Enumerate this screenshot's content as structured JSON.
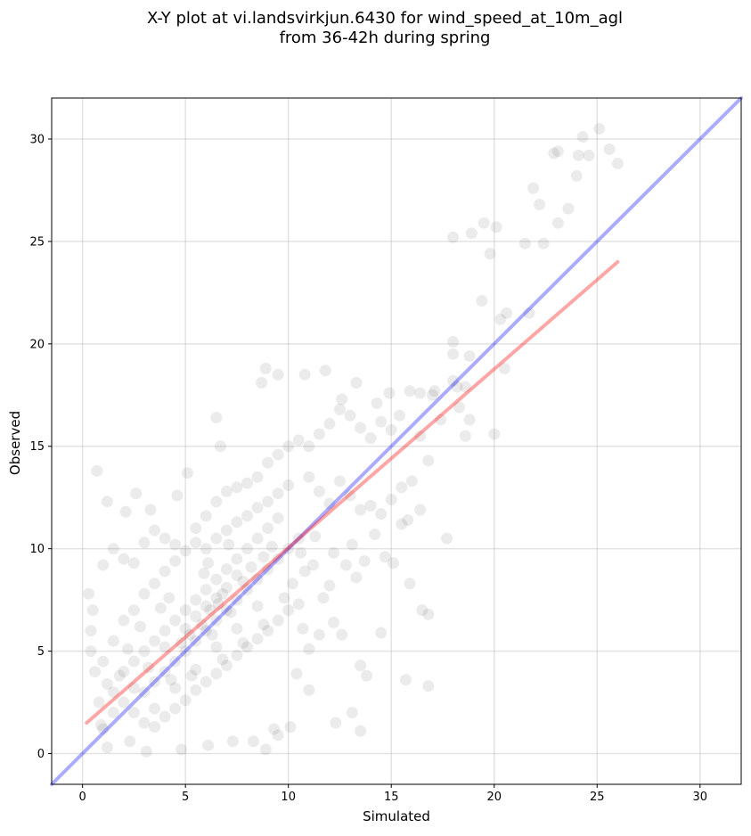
{
  "chart_data": {
    "type": "scatter",
    "title_lines": [
      "X-Y plot at vi.landsvirkjun.6430 for wind_speed_at_10m_agl",
      "from 36-42h during spring"
    ],
    "xlabel": "Simulated",
    "ylabel": "Observed",
    "xlim": [
      -1.5,
      32
    ],
    "ylim": [
      -1.5,
      32
    ],
    "xticks": [
      0,
      5,
      10,
      15,
      20,
      25,
      30
    ],
    "yticks": [
      0,
      5,
      10,
      15,
      20,
      25,
      30
    ],
    "xtick_labels": [
      "0",
      "5",
      "10",
      "15",
      "20",
      "25",
      "30"
    ],
    "ytick_labels": [
      "0",
      "5",
      "10",
      "15",
      "20",
      "25",
      "30"
    ],
    "grid": true,
    "point_color": "#000000",
    "point_opacity": 0.08,
    "points": [
      [
        0.7,
        13.8
      ],
      [
        1.2,
        12.3
      ],
      [
        2.6,
        12.7
      ],
      [
        2.1,
        11.8
      ],
      [
        3.3,
        11.9
      ],
      [
        4.6,
        12.6
      ],
      [
        5.1,
        13.7
      ],
      [
        6.5,
        16.4
      ],
      [
        6.7,
        15.0
      ],
      [
        8.9,
        18.8
      ],
      [
        10.8,
        18.5
      ],
      [
        11.8,
        18.7
      ],
      [
        12.6,
        17.3
      ],
      [
        13.3,
        18.1
      ],
      [
        8.7,
        18.1
      ],
      [
        9.5,
        18.5
      ],
      [
        14.3,
        17.1
      ],
      [
        14.9,
        17.6
      ],
      [
        15.4,
        16.5
      ],
      [
        15.9,
        17.7
      ],
      [
        16.4,
        17.6
      ],
      [
        17.1,
        17.7
      ],
      [
        16.4,
        15.5
      ],
      [
        16.8,
        14.3
      ],
      [
        17.4,
        16.3
      ],
      [
        17.7,
        10.5
      ],
      [
        16.8,
        6.8
      ],
      [
        16.5,
        7.0
      ],
      [
        15.9,
        8.3
      ],
      [
        15.7,
        3.6
      ],
      [
        16.8,
        3.3
      ],
      [
        13.5,
        1.1
      ],
      [
        13.1,
        2.0
      ],
      [
        12.3,
        1.5
      ],
      [
        14.5,
        5.9
      ],
      [
        13.8,
        3.8
      ],
      [
        13.5,
        4.3
      ],
      [
        18.0,
        25.2
      ],
      [
        18.9,
        25.4
      ],
      [
        19.5,
        25.9
      ],
      [
        19.8,
        24.4
      ],
      [
        20.1,
        25.7
      ],
      [
        21.5,
        24.9
      ],
      [
        22.4,
        24.9
      ],
      [
        22.2,
        26.8
      ],
      [
        21.9,
        27.6
      ],
      [
        22.9,
        29.3
      ],
      [
        23.1,
        29.4
      ],
      [
        23.6,
        26.6
      ],
      [
        23.1,
        25.9
      ],
      [
        24.0,
        28.2
      ],
      [
        24.1,
        29.2
      ],
      [
        24.3,
        30.1
      ],
      [
        24.6,
        29.2
      ],
      [
        25.1,
        30.5
      ],
      [
        25.6,
        29.5
      ],
      [
        26.0,
        28.8
      ],
      [
        18.0,
        20.1
      ],
      [
        18.0,
        19.5
      ],
      [
        18.8,
        19.4
      ],
      [
        19.4,
        22.1
      ],
      [
        20.3,
        21.2
      ],
      [
        20.6,
        21.5
      ],
      [
        21.7,
        21.5
      ],
      [
        20.0,
        15.6
      ],
      [
        20.5,
        18.8
      ],
      [
        18.8,
        16.3
      ],
      [
        18.6,
        15.5
      ],
      [
        18.3,
        16.9
      ],
      [
        18.2,
        17.9
      ],
      [
        18.6,
        17.9
      ],
      [
        17.0,
        17.5
      ],
      [
        18.0,
        18.2
      ],
      [
        16.0,
        13.3
      ],
      [
        16.4,
        11.9
      ],
      [
        15.8,
        11.4
      ],
      [
        15.5,
        11.2
      ],
      [
        0.3,
        7.8
      ],
      [
        0.5,
        7.0
      ],
      [
        0.4,
        5.0
      ],
      [
        0.6,
        4.0
      ],
      [
        0.4,
        6.0
      ],
      [
        0.8,
        2.5
      ],
      [
        0.9,
        1.4
      ],
      [
        1.2,
        0.3
      ],
      [
        2.3,
        0.6
      ],
      [
        3.1,
        0.1
      ],
      [
        4.8,
        0.2
      ],
      [
        6.1,
        0.4
      ],
      [
        7.3,
        0.6
      ],
      [
        8.3,
        0.6
      ],
      [
        8.9,
        0.2
      ],
      [
        9.5,
        0.9
      ],
      [
        10.1,
        1.3
      ],
      [
        9.3,
        1.2
      ],
      [
        11.0,
        3.1
      ],
      [
        10.4,
        3.9
      ],
      [
        1.0,
        9.2
      ],
      [
        1.5,
        10.0
      ],
      [
        2.0,
        9.5
      ],
      [
        2.5,
        9.3
      ],
      [
        3.0,
        10.3
      ],
      [
        3.5,
        10.9
      ],
      [
        4.0,
        10.5
      ],
      [
        4.5,
        10.2
      ],
      [
        5.5,
        11.0
      ],
      [
        6.0,
        11.6
      ],
      [
        6.5,
        12.3
      ],
      [
        7.0,
        12.8
      ],
      [
        7.5,
        13.0
      ],
      [
        8.0,
        13.2
      ],
      [
        8.5,
        13.5
      ],
      [
        9.0,
        14.2
      ],
      [
        9.5,
        14.6
      ],
      [
        10.0,
        15.0
      ],
      [
        10.5,
        15.3
      ],
      [
        11.0,
        15.0
      ],
      [
        11.5,
        15.6
      ],
      [
        12.0,
        16.1
      ],
      [
        12.5,
        16.8
      ],
      [
        13.0,
        16.5
      ],
      [
        13.5,
        15.9
      ],
      [
        14.0,
        15.4
      ],
      [
        14.5,
        16.2
      ],
      [
        15.0,
        15.8
      ],
      [
        11.0,
        13.5
      ],
      [
        11.5,
        12.8
      ],
      [
        12.0,
        12.2
      ],
      [
        12.5,
        13.3
      ],
      [
        13.0,
        12.6
      ],
      [
        13.5,
        11.9
      ],
      [
        14.0,
        12.1
      ],
      [
        14.5,
        11.7
      ],
      [
        15.0,
        12.4
      ],
      [
        15.5,
        13.0
      ],
      [
        12.8,
        9.2
      ],
      [
        13.3,
        8.6
      ],
      [
        12.0,
        8.2
      ],
      [
        11.7,
        7.6
      ],
      [
        12.2,
        6.4
      ],
      [
        11.5,
        5.8
      ],
      [
        12.6,
        5.8
      ],
      [
        11.0,
        5.1
      ],
      [
        10.7,
        6.1
      ],
      [
        12.2,
        9.8
      ],
      [
        13.7,
        9.4
      ],
      [
        14.2,
        10.7
      ],
      [
        14.7,
        9.6
      ],
      [
        15.1,
        9.3
      ],
      [
        13.1,
        10.2
      ],
      [
        11.3,
        10.6
      ],
      [
        10.6,
        9.8
      ],
      [
        1.5,
        3.0
      ],
      [
        2.0,
        2.5
      ],
      [
        2.5,
        2.0
      ],
      [
        3.0,
        1.5
      ],
      [
        3.5,
        1.3
      ],
      [
        4.0,
        1.8
      ],
      [
        4.5,
        2.2
      ],
      [
        5.0,
        2.6
      ],
      [
        5.5,
        3.1
      ],
      [
        6.0,
        3.5
      ],
      [
        6.5,
        3.9
      ],
      [
        7.0,
        4.3
      ],
      [
        7.5,
        4.8
      ],
      [
        8.0,
        5.2
      ],
      [
        8.5,
        5.6
      ],
      [
        9.0,
        6.0
      ],
      [
        9.5,
        6.5
      ],
      [
        10.0,
        7.0
      ],
      [
        10.5,
        7.3
      ],
      [
        1.0,
        4.5
      ],
      [
        1.5,
        5.5
      ],
      [
        2.0,
        6.5
      ],
      [
        2.5,
        7.0
      ],
      [
        3.0,
        7.8
      ],
      [
        3.5,
        8.3
      ],
      [
        4.0,
        8.9
      ],
      [
        4.5,
        9.4
      ],
      [
        5.0,
        9.9
      ],
      [
        5.5,
        10.3
      ],
      [
        6.0,
        10.0
      ],
      [
        6.5,
        10.5
      ],
      [
        7.0,
        10.9
      ],
      [
        7.5,
        11.3
      ],
      [
        8.0,
        11.6
      ],
      [
        8.5,
        12.0
      ],
      [
        9.0,
        12.3
      ],
      [
        9.5,
        12.7
      ],
      [
        10.0,
        13.1
      ],
      [
        2.0,
        4.0
      ],
      [
        2.5,
        4.5
      ],
      [
        3.0,
        5.0
      ],
      [
        3.5,
        5.5
      ],
      [
        4.0,
        6.0
      ],
      [
        4.5,
        6.5
      ],
      [
        5.0,
        7.0
      ],
      [
        5.5,
        7.5
      ],
      [
        6.0,
        8.0
      ],
      [
        6.5,
        8.5
      ],
      [
        7.0,
        9.0
      ],
      [
        7.5,
        9.5
      ],
      [
        8.0,
        10.0
      ],
      [
        8.5,
        10.5
      ],
      [
        9.0,
        11.0
      ],
      [
        9.5,
        11.5
      ],
      [
        3.0,
        3.0
      ],
      [
        3.5,
        3.5
      ],
      [
        4.0,
        4.0
      ],
      [
        4.5,
        4.5
      ],
      [
        5.0,
        5.0
      ],
      [
        5.5,
        5.5
      ],
      [
        6.0,
        6.0
      ],
      [
        6.5,
        6.5
      ],
      [
        7.0,
        7.0
      ],
      [
        7.5,
        7.5
      ],
      [
        8.0,
        8.0
      ],
      [
        8.5,
        8.5
      ],
      [
        9.0,
        9.0
      ],
      [
        9.5,
        9.5
      ],
      [
        10.0,
        10.0
      ],
      [
        10.5,
        10.5
      ],
      [
        4.0,
        5.2
      ],
      [
        5.0,
        6.1
      ],
      [
        6.0,
        7.2
      ],
      [
        7.0,
        8.1
      ],
      [
        5.5,
        6.7
      ],
      [
        6.5,
        7.6
      ],
      [
        7.5,
        8.7
      ],
      [
        4.5,
        3.2
      ],
      [
        5.5,
        4.1
      ],
      [
        6.5,
        5.2
      ],
      [
        7.5,
        6.1
      ],
      [
        8.5,
        7.2
      ],
      [
        3.5,
        2.2
      ],
      [
        2.5,
        3.2
      ],
      [
        1.5,
        2.0
      ],
      [
        1.0,
        1.2
      ],
      [
        6.2,
        7.0
      ],
      [
        6.8,
        7.8
      ],
      [
        5.8,
        6.3
      ],
      [
        6.3,
        5.8
      ],
      [
        7.2,
        6.9
      ],
      [
        5.2,
        5.8
      ],
      [
        4.8,
        5.4
      ],
      [
        6.6,
        7.3
      ],
      [
        7.8,
        8.4
      ],
      [
        8.2,
        9.1
      ],
      [
        8.8,
        9.6
      ],
      [
        9.2,
        10.1
      ],
      [
        5.9,
        8.8
      ],
      [
        6.1,
        9.3
      ],
      [
        7.1,
        10.2
      ],
      [
        4.2,
        7.6
      ],
      [
        3.8,
        7.1
      ],
      [
        2.8,
        6.2
      ],
      [
        2.2,
        5.1
      ],
      [
        1.8,
        3.8
      ],
      [
        1.2,
        3.4
      ],
      [
        3.2,
        4.2
      ],
      [
        4.3,
        3.6
      ],
      [
        5.3,
        3.8
      ],
      [
        6.8,
        4.6
      ],
      [
        7.8,
        5.4
      ],
      [
        8.8,
        6.3
      ],
      [
        9.8,
        7.6
      ],
      [
        10.2,
        8.3
      ],
      [
        10.8,
        8.9
      ],
      [
        11.2,
        9.2
      ]
    ]
  }
}
